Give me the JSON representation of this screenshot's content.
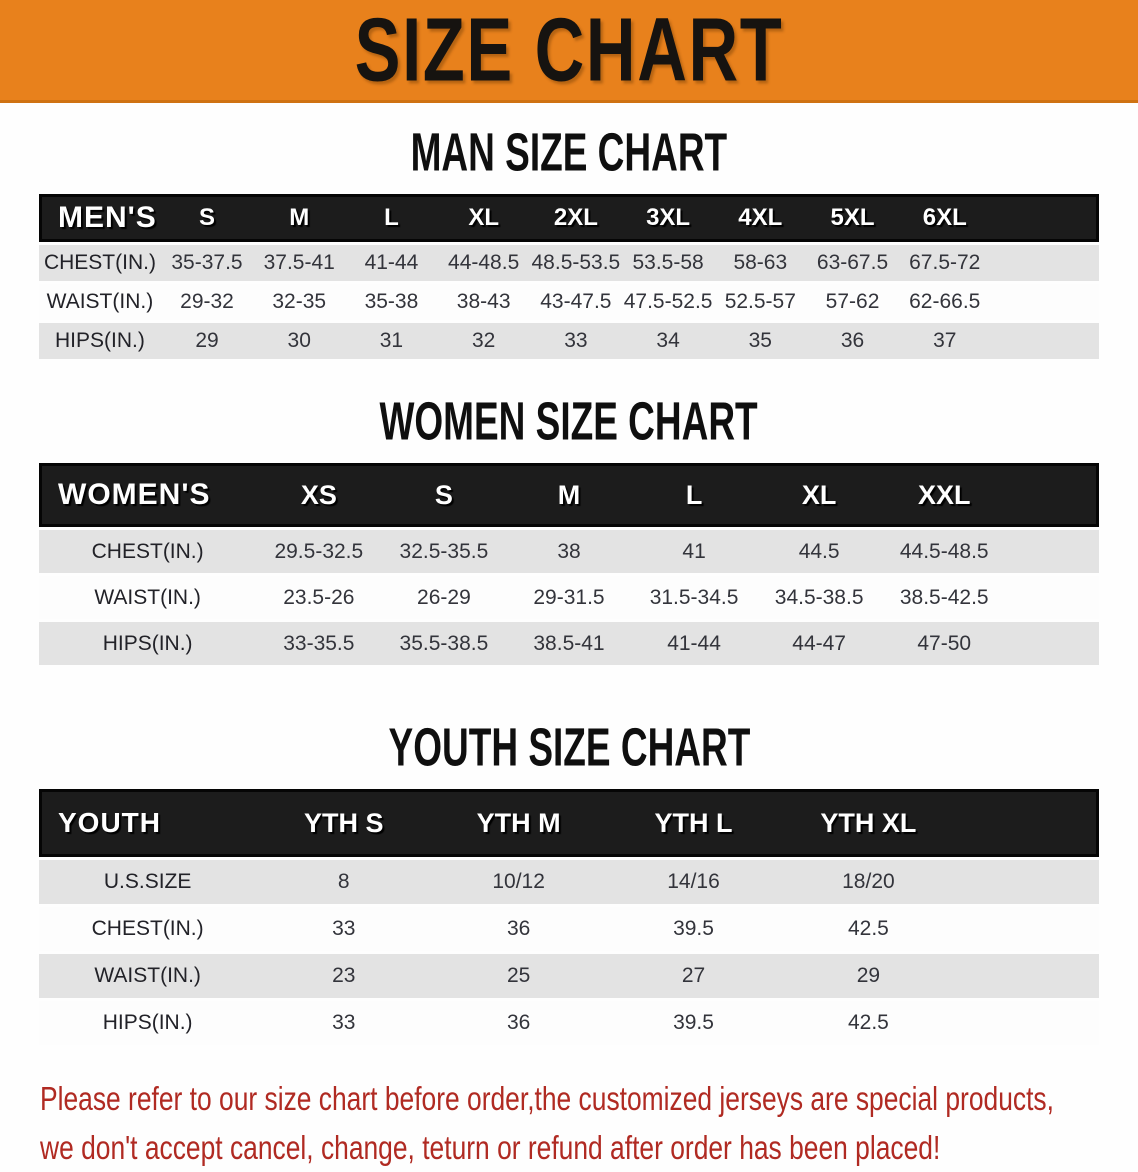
{
  "banner": {
    "title": "SIZE CHART"
  },
  "sections": [
    {
      "heading": "MAN SIZE CHART",
      "table": {
        "corner": "MEN'S",
        "columns": [
          "S",
          "M",
          "L",
          "XL",
          "2XL",
          "3XL",
          "4XL",
          "5XL",
          "6XL"
        ],
        "rows": [
          {
            "label": "CHEST(IN.)",
            "values": [
              "35-37.5",
              "37.5-41",
              "41-44",
              "44-48.5",
              "48.5-53.5",
              "53.5-58",
              "58-63",
              "63-67.5",
              "67.5-72"
            ]
          },
          {
            "label": "WAIST(IN.)",
            "values": [
              "29-32",
              "32-35",
              "35-38",
              "38-43",
              "43-47.5",
              "47.5-52.5",
              "52.5-57",
              "57-62",
              "62-66.5"
            ]
          },
          {
            "label": "HIPS(IN.)",
            "values": [
              "29",
              "30",
              "31",
              "32",
              "33",
              "34",
              "35",
              "36",
              "37"
            ]
          }
        ]
      }
    },
    {
      "heading": "WOMEN SIZE CHART",
      "table": {
        "corner": "WOMEN'S",
        "columns": [
          "XS",
          "S",
          "M",
          "L",
          "XL",
          "XXL"
        ],
        "rows": [
          {
            "label": "CHEST(IN.)",
            "values": [
              "29.5-32.5",
              "32.5-35.5",
              "38",
              "41",
              "44.5",
              "44.5-48.5"
            ]
          },
          {
            "label": "WAIST(IN.)",
            "values": [
              "23.5-26",
              "26-29",
              "29-31.5",
              "31.5-34.5",
              "34.5-38.5",
              "38.5-42.5"
            ]
          },
          {
            "label": "HIPS(IN.)",
            "values": [
              "33-35.5",
              "35.5-38.5",
              "38.5-41",
              "41-44",
              "44-47",
              "47-50"
            ]
          }
        ]
      }
    },
    {
      "heading": "YOUTH SIZE CHART",
      "table": {
        "corner": "YOUTH",
        "columns": [
          "YTH S",
          "YTH M",
          "YTH L",
          "YTH XL"
        ],
        "rows": [
          {
            "label": "U.S.SIZE",
            "values": [
              "8",
              "10/12",
              "14/16",
              "18/20"
            ]
          },
          {
            "label": "CHEST(IN.)",
            "values": [
              "33",
              "36",
              "39.5",
              "42.5"
            ]
          },
          {
            "label": "WAIST(IN.)",
            "values": [
              "23",
              "25",
              "27",
              "29"
            ]
          },
          {
            "label": "HIPS(IN.)",
            "values": [
              "33",
              "36",
              "39.5",
              "42.5"
            ]
          }
        ]
      }
    }
  ],
  "disclaimer": {
    "line1": "Please refer to our size chart before order,the customized jerseys are special products,",
    "line2": "we don't accept cancel, change, teturn or refund after order has been placed!"
  },
  "colors": {
    "banner_bg": "#e8811c",
    "header_band": "#1c1c1c",
    "row_gray": "#e3e3e3",
    "row_white": "#fdfdfd",
    "disclaimer_red": "#b02a22"
  }
}
